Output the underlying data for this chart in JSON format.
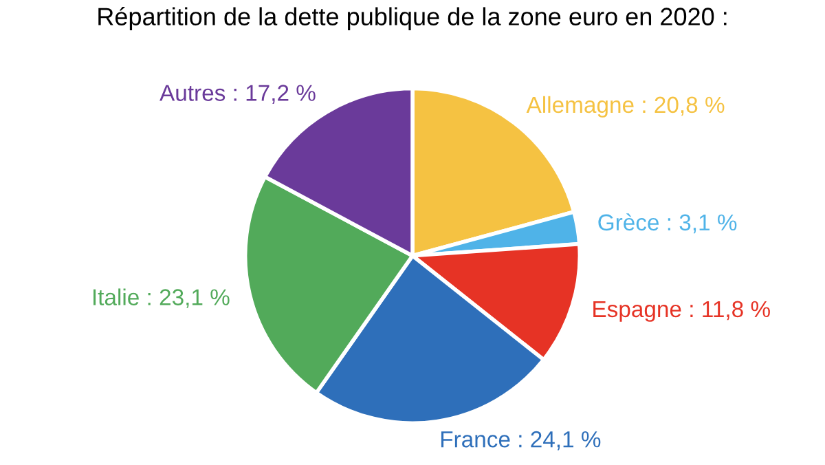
{
  "chart_data": {
    "type": "pie",
    "title": "Répartition de la dette publique de la zone euro en 2020 :",
    "categories": [
      "Allemagne",
      "Grèce",
      "Espagne",
      "France",
      "Italie",
      "Autres"
    ],
    "values": [
      20.8,
      3.1,
      11.8,
      24.1,
      23.1,
      17.2
    ],
    "colors": [
      "#f5c242",
      "#4fb3e8",
      "#e63325",
      "#2e6fba",
      "#52aa5a",
      "#6a3a9a"
    ],
    "value_labels": [
      "20,8 %",
      "3,1 %",
      "11,8 %",
      "24,1 %",
      "23,1 %",
      "17,2 %"
    ]
  }
}
